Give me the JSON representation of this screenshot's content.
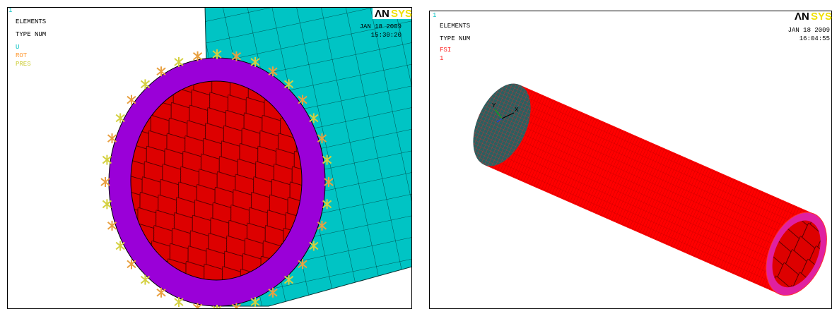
{
  "left_panel": {
    "window_number": "1",
    "title": "ELEMENTS",
    "subtitle": "TYPE NUM",
    "legend": [
      "U",
      "ROT",
      "PRES"
    ],
    "date": "JAN 18 2009",
    "time": "15:30:20",
    "logo_main": "ΛN",
    "logo_accent": "SYS"
  },
  "right_panel": {
    "window_number": "1",
    "title": "ELEMENTS",
    "subtitle": "TYPE NUM",
    "legend": [
      "FSI",
      "1"
    ],
    "date": "JAN 18 2009",
    "time": "16:04:55",
    "logo_main": "ΛN",
    "logo_accent": "SYS",
    "triad": [
      "Y",
      "X"
    ]
  }
}
